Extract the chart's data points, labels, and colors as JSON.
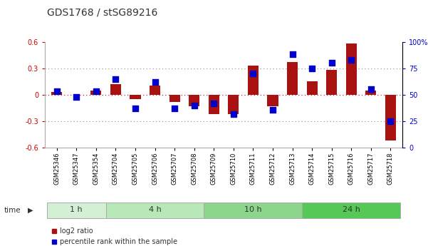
{
  "title": "GDS1768 / stSG89216",
  "samples": [
    "GSM25346",
    "GSM25347",
    "GSM25354",
    "GSM25704",
    "GSM25705",
    "GSM25706",
    "GSM25707",
    "GSM25708",
    "GSM25709",
    "GSM25710",
    "GSM25711",
    "GSM25712",
    "GSM25713",
    "GSM25714",
    "GSM25715",
    "GSM25716",
    "GSM25717",
    "GSM25718"
  ],
  "log2_ratio": [
    0.03,
    0.0,
    0.05,
    0.12,
    -0.05,
    0.1,
    -0.08,
    -0.13,
    -0.22,
    -0.22,
    0.33,
    -0.13,
    0.37,
    0.15,
    0.28,
    0.58,
    0.05,
    -0.52
  ],
  "pct_rank": [
    53,
    48,
    53,
    65,
    37,
    62,
    37,
    40,
    42,
    32,
    70,
    36,
    88,
    75,
    80,
    83,
    55,
    25
  ],
  "groups": [
    {
      "label": "1 h",
      "start": 0,
      "end": 3
    },
    {
      "label": "4 h",
      "start": 3,
      "end": 8
    },
    {
      "label": "10 h",
      "start": 8,
      "end": 13
    },
    {
      "label": "24 h",
      "start": 13,
      "end": 18
    }
  ],
  "group_colors": [
    "#d4f0d4",
    "#b8e8b8",
    "#8cd68c",
    "#55c855"
  ],
  "bar_color": "#aa1111",
  "dot_color": "#0000cc",
  "ylim_left": [
    -0.6,
    0.6
  ],
  "ylim_right": [
    0,
    100
  ],
  "yticks_left": [
    -0.6,
    -0.3,
    0.0,
    0.3,
    0.6
  ],
  "yticks_left_labels": [
    "-0.6",
    "-0.3",
    "0",
    "0.3",
    "0.6"
  ],
  "yticks_right": [
    0,
    25,
    50,
    75,
    100
  ],
  "yticks_right_labels": [
    "0",
    "25",
    "50",
    "75",
    "100%"
  ],
  "title_fontsize": 10,
  "tick_fontsize": 7,
  "sample_fontsize": 6,
  "group_fontsize": 8,
  "legend_fontsize": 7
}
